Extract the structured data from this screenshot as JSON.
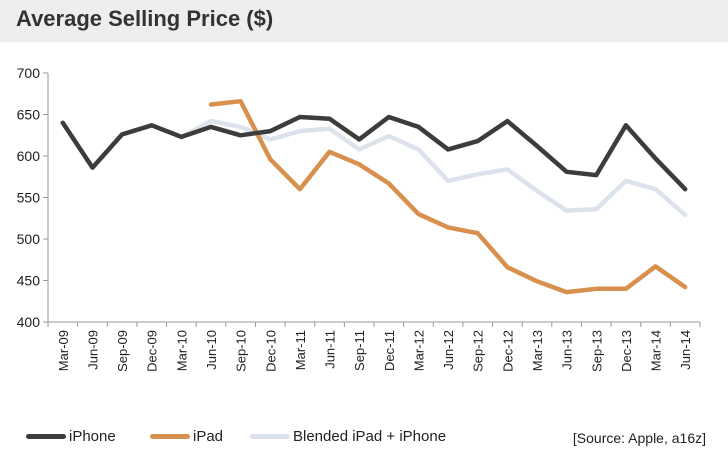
{
  "chart_data": {
    "type": "line",
    "title": "Average Selling Price ($)",
    "categories": [
      "Mar-09",
      "Jun-09",
      "Sep-09",
      "Dec-09",
      "Mar-10",
      "Jun-10",
      "Sep-10",
      "Dec-10",
      "Mar-11",
      "Jun-11",
      "Sep-11",
      "Dec-11",
      "Mar-12",
      "Jun-12",
      "Sep-12",
      "Dec-12",
      "Mar-13",
      "Jun-13",
      "Sep-13",
      "Dec-13",
      "Mar-14",
      "Jun-14"
    ],
    "ylim": [
      400,
      700
    ],
    "yticks": [
      "400",
      "450",
      "500",
      "550",
      "600",
      "650",
      "700"
    ],
    "series": [
      {
        "name": "iPhone",
        "color": "#3c3c3c",
        "values": [
          640,
          586,
          626,
          637,
          623,
          635,
          625,
          630,
          647,
          645,
          620,
          647,
          635,
          608,
          618,
          642,
          612,
          581,
          577,
          637,
          597,
          560
        ]
      },
      {
        "name": "iPad",
        "color": "#d8904f",
        "values": [
          null,
          null,
          null,
          null,
          null,
          662,
          666,
          596,
          560,
          605,
          590,
          567,
          530,
          514,
          507,
          466,
          449,
          436,
          440,
          440,
          467,
          442
        ]
      },
      {
        "name": "Blended iPad + iPhone",
        "color": "#dde3ec",
        "values": [
          null,
          null,
          null,
          null,
          623,
          642,
          635,
          620,
          630,
          633,
          608,
          624,
          608,
          570,
          578,
          584,
          558,
          534,
          536,
          570,
          560,
          529
        ]
      }
    ],
    "source": "[Source: Apple, a16z]",
    "legend_position": "bottom"
  }
}
